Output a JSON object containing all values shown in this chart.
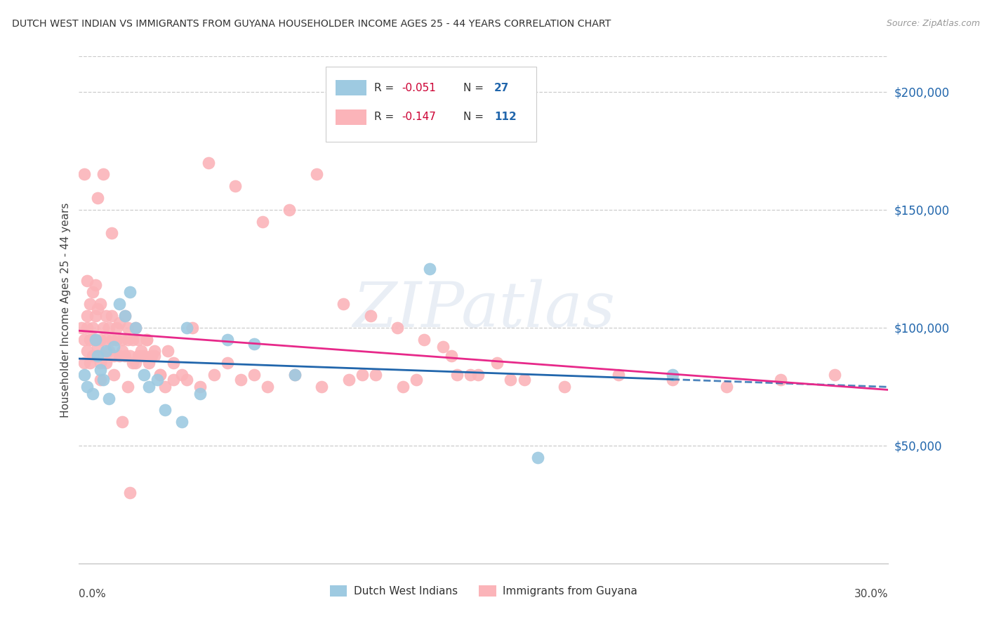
{
  "title": "DUTCH WEST INDIAN VS IMMIGRANTS FROM GUYANA HOUSEHOLDER INCOME AGES 25 - 44 YEARS CORRELATION CHART",
  "source": "Source: ZipAtlas.com",
  "ylabel": "Householder Income Ages 25 - 44 years",
  "y_tick_labels": [
    "$50,000",
    "$100,000",
    "$150,000",
    "$200,000"
  ],
  "y_tick_values": [
    50000,
    100000,
    150000,
    200000
  ],
  "legend_label_blue": "Dutch West Indians",
  "legend_label_pink": "Immigrants from Guyana",
  "blue_color": "#9ecae1",
  "pink_color": "#fbb4b9",
  "blue_line_color": "#2166ac",
  "pink_line_color": "#e7298a",
  "xlim": [
    0.0,
    0.3
  ],
  "ylim": [
    0,
    215000
  ],
  "watermark": "ZIPatlas",
  "blue_scatter_x": [
    0.002,
    0.003,
    0.005,
    0.006,
    0.008,
    0.009,
    0.01,
    0.011,
    0.013,
    0.015,
    0.017,
    0.019,
    0.021,
    0.024,
    0.026,
    0.029,
    0.032,
    0.038,
    0.045,
    0.055,
    0.065,
    0.08,
    0.13,
    0.17,
    0.22,
    0.04,
    0.007
  ],
  "blue_scatter_y": [
    80000,
    75000,
    72000,
    95000,
    82000,
    78000,
    90000,
    70000,
    92000,
    110000,
    105000,
    115000,
    100000,
    80000,
    75000,
    78000,
    65000,
    60000,
    72000,
    95000,
    93000,
    80000,
    125000,
    45000,
    80000,
    100000,
    88000
  ],
  "pink_scatter_x": [
    0.001,
    0.002,
    0.002,
    0.002,
    0.003,
    0.003,
    0.003,
    0.004,
    0.004,
    0.004,
    0.005,
    0.005,
    0.005,
    0.006,
    0.006,
    0.006,
    0.007,
    0.007,
    0.008,
    0.008,
    0.008,
    0.009,
    0.009,
    0.01,
    0.01,
    0.01,
    0.011,
    0.011,
    0.012,
    0.012,
    0.013,
    0.014,
    0.014,
    0.015,
    0.015,
    0.016,
    0.016,
    0.017,
    0.017,
    0.018,
    0.018,
    0.019,
    0.02,
    0.02,
    0.021,
    0.022,
    0.022,
    0.023,
    0.024,
    0.025,
    0.026,
    0.027,
    0.028,
    0.03,
    0.032,
    0.035,
    0.038,
    0.04,
    0.045,
    0.05,
    0.055,
    0.06,
    0.065,
    0.07,
    0.08,
    0.09,
    0.1,
    0.11,
    0.12,
    0.14,
    0.16,
    0.18,
    0.2,
    0.22,
    0.24,
    0.26,
    0.28,
    0.135,
    0.155,
    0.105,
    0.125,
    0.145,
    0.165,
    0.025,
    0.03,
    0.035,
    0.018,
    0.013,
    0.008,
    0.005,
    0.003,
    0.007,
    0.009,
    0.012,
    0.016,
    0.019,
    0.021,
    0.023,
    0.028,
    0.033,
    0.042,
    0.048,
    0.058,
    0.068,
    0.078,
    0.088,
    0.098,
    0.108,
    0.118,
    0.128,
    0.138,
    0.148
  ],
  "pink_scatter_y": [
    100000,
    95000,
    85000,
    165000,
    100000,
    120000,
    90000,
    110000,
    95000,
    85000,
    100000,
    115000,
    88000,
    95000,
    105000,
    118000,
    92000,
    108000,
    85000,
    95000,
    110000,
    100000,
    88000,
    95000,
    105000,
    85000,
    100000,
    90000,
    95000,
    105000,
    88000,
    95000,
    100000,
    88000,
    102000,
    90000,
    95000,
    88000,
    105000,
    95000,
    100000,
    88000,
    95000,
    85000,
    100000,
    88000,
    95000,
    90000,
    88000,
    95000,
    85000,
    88000,
    90000,
    80000,
    75000,
    85000,
    80000,
    78000,
    75000,
    80000,
    85000,
    78000,
    80000,
    75000,
    80000,
    75000,
    78000,
    80000,
    75000,
    80000,
    78000,
    75000,
    80000,
    78000,
    75000,
    78000,
    80000,
    92000,
    85000,
    80000,
    78000,
    80000,
    78000,
    95000,
    80000,
    78000,
    75000,
    80000,
    78000,
    95000,
    105000,
    155000,
    165000,
    140000,
    60000,
    30000,
    85000,
    88000,
    88000,
    90000,
    100000,
    170000,
    160000,
    145000,
    150000,
    165000,
    110000,
    105000,
    100000,
    95000,
    88000,
    80000
  ]
}
